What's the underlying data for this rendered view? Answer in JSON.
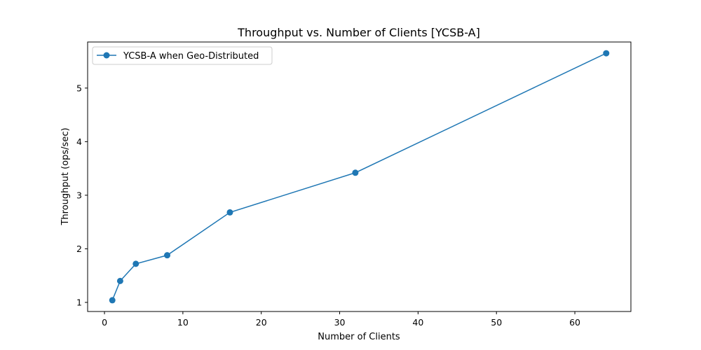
{
  "chart_data": {
    "type": "line",
    "title": "Throughput vs. Number of Clients [YCSB-A]",
    "xlabel": "Number of Clients",
    "ylabel": "Throughput (ops/sec)",
    "xlim": [
      -2.15,
      67.15
    ],
    "ylim": [
      0.83,
      5.86
    ],
    "xticks": [
      0,
      10,
      20,
      30,
      40,
      50,
      60
    ],
    "yticks": [
      1,
      2,
      3,
      4,
      5
    ],
    "grid": false,
    "legend_position": "top-left",
    "series": [
      {
        "name": "YCSB-A when Geo-Distributed",
        "color": "#1f77b4",
        "marker": "circle",
        "x": [
          1,
          2,
          4,
          8,
          16,
          32,
          64
        ],
        "y": [
          1.04,
          1.4,
          1.72,
          1.88,
          2.68,
          3.42,
          5.65
        ]
      }
    ]
  }
}
